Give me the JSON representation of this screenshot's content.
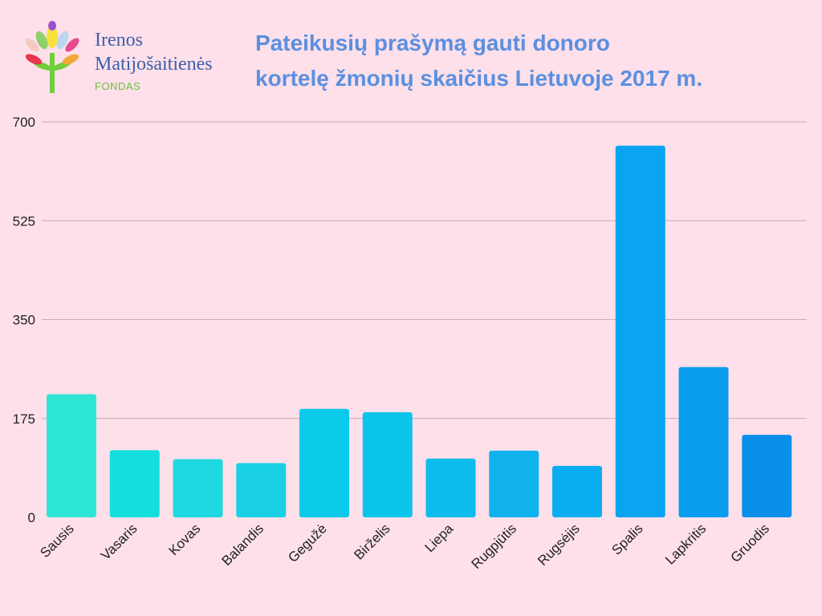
{
  "logo": {
    "line1": "Irenos",
    "line2": "Matijošaitienės",
    "line3": "FONDAS"
  },
  "chart_data": {
    "type": "bar",
    "title_lines": [
      "Pateikusių prašymą gauti donoro",
      "kortelę žmonių skaičius Lietuvoje 2017 m."
    ],
    "categories": [
      "Sausis",
      "Vasaris",
      "Kovas",
      "Balandis",
      "Gegužė",
      "Birželis",
      "Liepa",
      "Rugpjūtis",
      "Rugsėjis",
      "Spalis",
      "Lapkritis",
      "Gruodis"
    ],
    "values": [
      218,
      119,
      103,
      96,
      192,
      186,
      104,
      118,
      91,
      658,
      266,
      146
    ],
    "yticks": [
      "0",
      "175",
      "350",
      "525",
      "700"
    ],
    "ylim": [
      0,
      700
    ],
    "grid": true,
    "legend": "none",
    "colors": [
      "#2ee6d6",
      "#14dfdc",
      "#1dd8e0",
      "#1ad0e4",
      "#0bcaea",
      "#0bc4ea",
      "#0bbcec",
      "#10b2ee",
      "#0aaef0",
      "#0aa4f0",
      "#0a9cee",
      "#0a90ea"
    ]
  }
}
